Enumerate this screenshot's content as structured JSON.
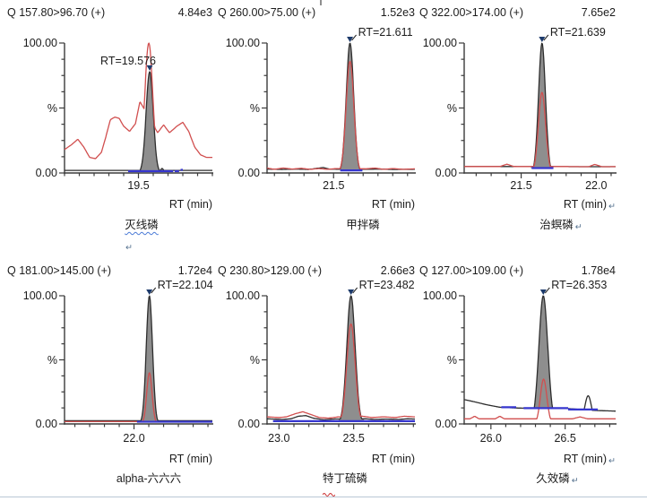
{
  "colors": {
    "red_trace": "#d14f4f",
    "black_trace": "#2e2e2e",
    "peak_fill": "#8e8e8e",
    "baseline_blue": "#3636cf",
    "rt_marker": "#1c3a6b",
    "axis": "#3b3b3b",
    "text": "#1c1c1c",
    "spell_blue": "#4a7ad6",
    "spell_red": "#cc3333",
    "return_mark": "#54718e",
    "window_border": "#b9c7d5"
  },
  "marks": {
    "return_char": "↵"
  },
  "chart_data": [
    {
      "type": "area",
      "transition": "Q 157.80>96.70 (+)",
      "intensity": "4.84e3",
      "rt_annotation": "RT=19.576",
      "rt": 19.576,
      "apex_pct": 78,
      "rt_label_placement": "above",
      "compound": "灭线磷",
      "spellcheck": "blue",
      "return_after_compound": false,
      "return_after_xlabel": false,
      "standalone_return_below": true,
      "xlabel": "RT (min)",
      "y_axis": {
        "top": "100.00",
        "mid": "%",
        "bottom": "0.00"
      },
      "ylim": [
        0,
        100
      ],
      "xlim": [
        19.0,
        20.0
      ],
      "x_ticks": [
        {
          "v": 19.5,
          "label": "19.5"
        }
      ],
      "x_minor_step": 0.1,
      "black_trace": {
        "points": [
          [
            19.0,
            2
          ],
          [
            20.0,
            2
          ]
        ],
        "peaks": [
          {
            "c": 19.576,
            "a": 78,
            "s": 0.024
          },
          {
            "c": 19.66,
            "a": 3.5,
            "s": 0.01
          }
        ]
      },
      "red_trace": {
        "points": [
          [
            19.0,
            18
          ],
          [
            19.05,
            22
          ],
          [
            19.09,
            26
          ],
          [
            19.13,
            20
          ],
          [
            19.17,
            12
          ],
          [
            19.21,
            11
          ],
          [
            19.25,
            16
          ],
          [
            19.28,
            28
          ],
          [
            19.31,
            41
          ],
          [
            19.34,
            43
          ],
          [
            19.37,
            42
          ],
          [
            19.4,
            36
          ],
          [
            19.44,
            32
          ],
          [
            19.48,
            38
          ],
          [
            19.51,
            55
          ],
          [
            19.63,
            31
          ],
          [
            19.67,
            37
          ],
          [
            19.71,
            31
          ],
          [
            19.76,
            36
          ],
          [
            19.8,
            39
          ],
          [
            19.84,
            32
          ],
          [
            19.88,
            20
          ],
          [
            19.92,
            14
          ],
          [
            19.96,
            12
          ],
          [
            20.0,
            12
          ]
        ],
        "peaks": [
          {
            "c": 19.57,
            "a": 100,
            "s": 0.027
          }
        ]
      },
      "fill": {
        "from": 19.47,
        "to": 19.69,
        "floor": 1.6
      },
      "blue_segments": [
        [
          19.43,
          19.735,
          1.4
        ],
        [
          19.745,
          19.775,
          1.4
        ],
        [
          19.785,
          19.8,
          2.4
        ]
      ]
    },
    {
      "type": "area",
      "transition": "Q 260.00>75.00 (+)",
      "intensity": "1.52e3",
      "rt_annotation": "RT=21.611",
      "rt": 21.611,
      "apex_pct": 100,
      "rt_label_placement": "right",
      "compound": "甲拌磷",
      "spellcheck": "none",
      "return_after_compound": false,
      "return_after_xlabel": false,
      "standalone_return_below": false,
      "xlabel": "RT (min)",
      "y_axis": {
        "top": "100.00",
        "mid": "%",
        "bottom": "0.00"
      },
      "ylim": [
        0,
        100
      ],
      "xlim": [
        21.05,
        22.05
      ],
      "x_ticks": [
        {
          "v": 21.5,
          "label": "21.5"
        }
      ],
      "x_minor_step": 0.1,
      "black_trace": {
        "points": [
          [
            21.05,
            3
          ],
          [
            21.15,
            2.7
          ],
          [
            21.25,
            3
          ],
          [
            21.33,
            2.7
          ],
          [
            21.39,
            3.6
          ],
          [
            21.43,
            4.2
          ],
          [
            21.47,
            3
          ],
          [
            21.6,
            2.8
          ],
          [
            21.72,
            2.8
          ],
          [
            21.8,
            3
          ],
          [
            21.9,
            2.7
          ],
          [
            22.05,
            2.8
          ]
        ],
        "peaks": [
          {
            "c": 21.611,
            "a": 100,
            "s": 0.025
          }
        ]
      },
      "red_trace": {
        "points": [
          [
            21.05,
            3.8
          ],
          [
            21.1,
            2.8
          ],
          [
            21.16,
            3.8
          ],
          [
            21.22,
            3
          ],
          [
            21.28,
            3.6
          ],
          [
            21.34,
            2.8
          ],
          [
            21.4,
            3.4
          ],
          [
            21.46,
            2.8
          ],
          [
            21.52,
            3.4
          ],
          [
            21.72,
            3.2
          ],
          [
            21.78,
            3.8
          ],
          [
            21.84,
            2.8
          ],
          [
            21.9,
            3.4
          ],
          [
            21.97,
            2.8
          ],
          [
            22.05,
            3.2
          ]
        ],
        "peaks": [
          {
            "c": 21.611,
            "a": 86,
            "s": 0.026
          }
        ]
      },
      "fill": {
        "from": 21.545,
        "to": 21.685,
        "floor": 1.8
      },
      "blue_segments": [
        [
          21.545,
          21.695,
          2.0
        ]
      ]
    },
    {
      "type": "area",
      "transition": "Q 322.00>174.00 (+)",
      "intensity": "7.65e2",
      "rt_annotation": "RT=21.639",
      "rt": 21.639,
      "apex_pct": 100,
      "rt_label_placement": "right",
      "compound": "治螟磷",
      "spellcheck": "none",
      "return_after_compound": true,
      "return_after_xlabel": true,
      "standalone_return_below": false,
      "xlabel": "RT (min)",
      "y_axis": {
        "top": "100.00",
        "mid": "%",
        "bottom": "0.00"
      },
      "ylim": [
        0,
        100
      ],
      "xlim": [
        21.12,
        22.13
      ],
      "x_ticks": [
        {
          "v": 21.5,
          "label": "21.5"
        },
        {
          "v": 22.0,
          "label": "22.0"
        }
      ],
      "x_minor_step": 0.1,
      "black_trace": {
        "points": [
          [
            21.12,
            5
          ],
          [
            22.13,
            4.8
          ]
        ],
        "peaks": [
          {
            "c": 21.639,
            "a": 100,
            "s": 0.023
          }
        ]
      },
      "red_trace": {
        "points": [
          [
            21.12,
            5
          ],
          [
            21.36,
            5
          ],
          [
            21.405,
            6.8
          ],
          [
            21.45,
            5
          ],
          [
            21.74,
            5
          ],
          [
            21.95,
            4.8
          ],
          [
            21.99,
            6.6
          ],
          [
            22.04,
            4.8
          ],
          [
            22.13,
            4.9
          ]
        ],
        "peaks": [
          {
            "c": 21.639,
            "a": 62,
            "s": 0.024
          }
        ]
      },
      "fill": {
        "from": 21.565,
        "to": 21.715,
        "floor": 3.6
      },
      "blue_segments": [
        [
          21.57,
          21.715,
          3.8
        ]
      ]
    },
    {
      "type": "area",
      "transition": "Q 181.00>145.00 (+)",
      "intensity": "1.72e4",
      "rt_annotation": "RT=22.104",
      "rt": 22.104,
      "apex_pct": 100,
      "rt_label_placement": "right",
      "compound": "alpha-六六六",
      "spellcheck": "none",
      "return_after_compound": false,
      "return_after_xlabel": false,
      "standalone_return_below": false,
      "xlabel": "RT (min)",
      "y_axis": {
        "top": "100.00",
        "mid": "%",
        "bottom": "0.00"
      },
      "ylim": [
        0,
        100
      ],
      "xlim": [
        21.53,
        22.53
      ],
      "x_ticks": [
        {
          "v": 22.0,
          "label": "22.0"
        }
      ],
      "x_minor_step": 0.1,
      "black_trace": {
        "points": [
          [
            21.53,
            2.5
          ],
          [
            22.53,
            2.5
          ]
        ],
        "peaks": [
          {
            "c": 22.104,
            "a": 100,
            "s": 0.021
          }
        ]
      },
      "red_trace": {
        "points": [
          [
            21.53,
            1.8
          ],
          [
            22.53,
            1.8
          ]
        ],
        "peaks": [
          {
            "c": 22.104,
            "a": 40,
            "s": 0.018
          }
        ]
      },
      "fill": {
        "from": 22.03,
        "to": 22.18,
        "floor": 1.7
      },
      "blue_segments": [
        [
          22.02,
          22.53,
          1.7
        ]
      ]
    },
    {
      "type": "area",
      "transition": "Q 230.80>129.00 (+)",
      "intensity": "2.66e3",
      "rt_annotation": "RT=23.482",
      "rt": 23.482,
      "apex_pct": 100,
      "rt_label_placement": "right",
      "compound": "特丁硫磷",
      "spellcheck": "red-first",
      "return_after_compound": false,
      "return_after_xlabel": false,
      "standalone_return_below": false,
      "xlabel": "RT (min)",
      "y_axis": {
        "top": "100.00",
        "mid": "%",
        "bottom": "0.00"
      },
      "ylim": [
        0,
        100
      ],
      "xlim": [
        22.92,
        23.91
      ],
      "x_ticks": [
        {
          "v": 23.0,
          "label": "23.0"
        },
        {
          "v": 23.5,
          "label": "23.5"
        }
      ],
      "x_minor_step": 0.1,
      "black_trace": {
        "points": [
          [
            22.92,
            4
          ],
          [
            23.02,
            3.5
          ],
          [
            23.08,
            4
          ],
          [
            23.13,
            6
          ],
          [
            23.18,
            6.5
          ],
          [
            23.23,
            4.5
          ],
          [
            23.3,
            3.2
          ],
          [
            23.36,
            3.8
          ],
          [
            23.58,
            4
          ],
          [
            23.64,
            3.5
          ],
          [
            23.72,
            3.8
          ],
          [
            23.8,
            3.5
          ],
          [
            23.86,
            4
          ],
          [
            23.91,
            3.8
          ]
        ],
        "peaks": [
          {
            "c": 23.482,
            "a": 100,
            "s": 0.028
          }
        ]
      },
      "red_trace": {
        "points": [
          [
            22.92,
            5.5
          ],
          [
            23.0,
            5
          ],
          [
            23.05,
            5.5
          ],
          [
            23.11,
            8
          ],
          [
            23.16,
            9.5
          ],
          [
            23.21,
            7.5
          ],
          [
            23.27,
            5
          ],
          [
            23.33,
            4.5
          ],
          [
            23.4,
            5.5
          ],
          [
            23.56,
            6
          ],
          [
            23.62,
            5
          ],
          [
            23.7,
            5.5
          ],
          [
            23.78,
            5
          ],
          [
            23.84,
            6
          ],
          [
            23.91,
            5.5
          ]
        ],
        "peaks": [
          {
            "c": 23.482,
            "a": 78,
            "s": 0.028
          }
        ]
      },
      "fill": {
        "from": 23.4,
        "to": 23.57,
        "floor": 2.4
      },
      "blue_segments": [
        [
          22.96,
          23.91,
          2.2
        ]
      ]
    },
    {
      "type": "area",
      "transition": "Q 127.00>109.00 (+)",
      "intensity": "1.78e4",
      "rt_annotation": "RT=26.353",
      "rt": 26.353,
      "apex_pct": 100,
      "rt_label_placement": "right",
      "compound": "久效磷",
      "spellcheck": "none",
      "return_after_compound": true,
      "return_after_xlabel": true,
      "standalone_return_below": false,
      "xlabel": "RT (min)",
      "y_axis": {
        "top": "100.00",
        "mid": "%",
        "bottom": "0.00"
      },
      "ylim": [
        0,
        100
      ],
      "xlim": [
        25.82,
        26.84
      ],
      "x_ticks": [
        {
          "v": 26.0,
          "label": "26.0"
        },
        {
          "v": 26.5,
          "label": "26.5"
        }
      ],
      "x_minor_step": 0.1,
      "black_trace": {
        "points": [
          [
            25.82,
            19
          ],
          [
            25.88,
            17.5
          ],
          [
            25.97,
            15
          ],
          [
            26.06,
            13
          ],
          [
            26.15,
            12.5
          ],
          [
            26.22,
            12.3
          ],
          [
            26.46,
            12.5
          ],
          [
            26.52,
            12
          ],
          [
            26.7,
            10.5
          ],
          [
            26.84,
            10
          ]
        ],
        "peaks": [
          {
            "c": 26.353,
            "a": 100,
            "s": 0.03
          },
          {
            "c": 26.655,
            "a": 22,
            "s": 0.023
          }
        ]
      },
      "red_trace": {
        "points": [
          [
            25.82,
            4
          ],
          [
            25.86,
            4
          ],
          [
            25.89,
            6
          ],
          [
            25.92,
            4
          ],
          [
            26.03,
            4
          ],
          [
            26.06,
            6
          ],
          [
            26.09,
            4
          ],
          [
            26.3,
            4
          ],
          [
            26.42,
            4
          ],
          [
            26.55,
            4
          ],
          [
            26.6,
            5.5
          ],
          [
            26.65,
            4
          ],
          [
            26.84,
            4
          ]
        ],
        "peaks": [
          {
            "c": 26.355,
            "a": 35,
            "s": 0.022
          }
        ]
      },
      "fill": {
        "from": 26.235,
        "to": 26.52,
        "floor": 12
      },
      "blue_segments": [
        [
          26.07,
          26.17,
          13
        ],
        [
          26.22,
          26.52,
          12.3
        ],
        [
          26.52,
          26.72,
          11.3
        ]
      ]
    }
  ]
}
